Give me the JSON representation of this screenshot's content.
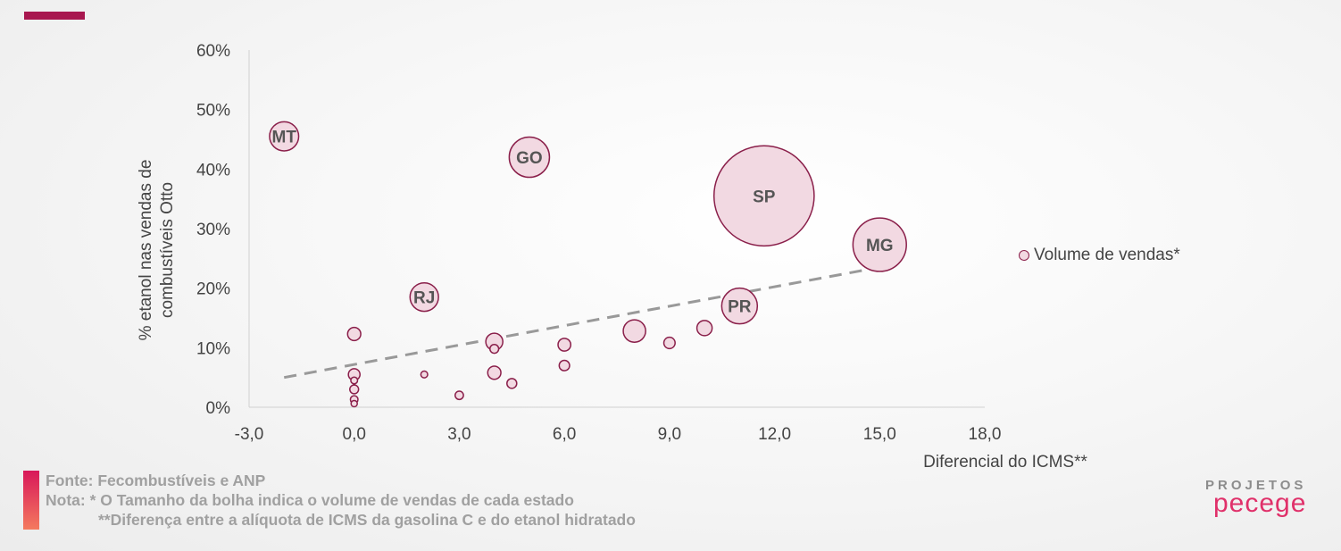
{
  "chart_data": {
    "type": "scatter",
    "subtype": "bubble",
    "xlabel": "Diferencial do ICMS**",
    "ylabel": "% etanol nas vendas de combustíveis Otto",
    "xlim": [
      -3,
      18
    ],
    "ylim": [
      0,
      60
    ],
    "x_ticks": [
      "-3,0",
      "0,0",
      "3,0",
      "6,0",
      "9,0",
      "12,0",
      "15,0",
      "18,0"
    ],
    "y_ticks": [
      "0%",
      "10%",
      "20%",
      "30%",
      "40%",
      "50%",
      "60%"
    ],
    "legend": "Volume de vendas*",
    "legend_position": "right",
    "grid": false,
    "bubble_color": "#f2d9e2",
    "bubble_edge": "#8a1f4a",
    "trendline": {
      "style": "dashed",
      "color": "#999999",
      "x": [
        -2,
        15
      ],
      "y": [
        5,
        23.5
      ]
    },
    "points": [
      {
        "label": "MT",
        "x": -2,
        "y": 45.5,
        "size": 2.2
      },
      {
        "label": "GO",
        "x": 5,
        "y": 42,
        "size": 4.2
      },
      {
        "label": "SP",
        "x": 11.7,
        "y": 35.5,
        "size": 26
      },
      {
        "label": "MG",
        "x": 15,
        "y": 27.3,
        "size": 7.4
      },
      {
        "label": "RJ",
        "x": 2,
        "y": 18.5,
        "size": 2.1
      },
      {
        "label": "PR",
        "x": 11,
        "y": 17,
        "size": 3.3
      },
      {
        "label": "",
        "x": 0,
        "y": 12.3,
        "size": 0.45
      },
      {
        "label": "",
        "x": 0,
        "y": 5.5,
        "size": 0.35
      },
      {
        "label": "",
        "x": 0,
        "y": 4.5,
        "size": 0.12
      },
      {
        "label": "",
        "x": 0,
        "y": 3,
        "size": 0.2
      },
      {
        "label": "",
        "x": 0,
        "y": 1.3,
        "size": 0.15
      },
      {
        "label": "",
        "x": 0,
        "y": 0.6,
        "size": 0.1
      },
      {
        "label": "",
        "x": 2,
        "y": 5.5,
        "size": 0.12
      },
      {
        "label": "",
        "x": 3,
        "y": 2,
        "size": 0.18
      },
      {
        "label": "",
        "x": 4,
        "y": 11,
        "size": 0.75
      },
      {
        "label": "",
        "x": 4,
        "y": 9.8,
        "size": 0.2
      },
      {
        "label": "",
        "x": 4,
        "y": 5.8,
        "size": 0.45
      },
      {
        "label": "",
        "x": 4.5,
        "y": 4,
        "size": 0.25
      },
      {
        "label": "",
        "x": 6,
        "y": 10.5,
        "size": 0.42
      },
      {
        "label": "",
        "x": 6,
        "y": 7,
        "size": 0.28
      },
      {
        "label": "",
        "x": 8,
        "y": 12.8,
        "size": 1.3
      },
      {
        "label": "",
        "x": 9,
        "y": 10.8,
        "size": 0.33
      },
      {
        "label": "",
        "x": 10,
        "y": 13.3,
        "size": 0.6
      }
    ]
  },
  "footer": {
    "source": "Fonte: Fecombustíveis e ANP",
    "note1": "Nota: * O Tamanho da bolha indica o volume de vendas de cada estado",
    "note2": "**Diferença entre a alíquota de ICMS da gasolina C e do etanol hidratado"
  },
  "logo": {
    "top": "PROJETOS",
    "bottom": "pecege"
  }
}
